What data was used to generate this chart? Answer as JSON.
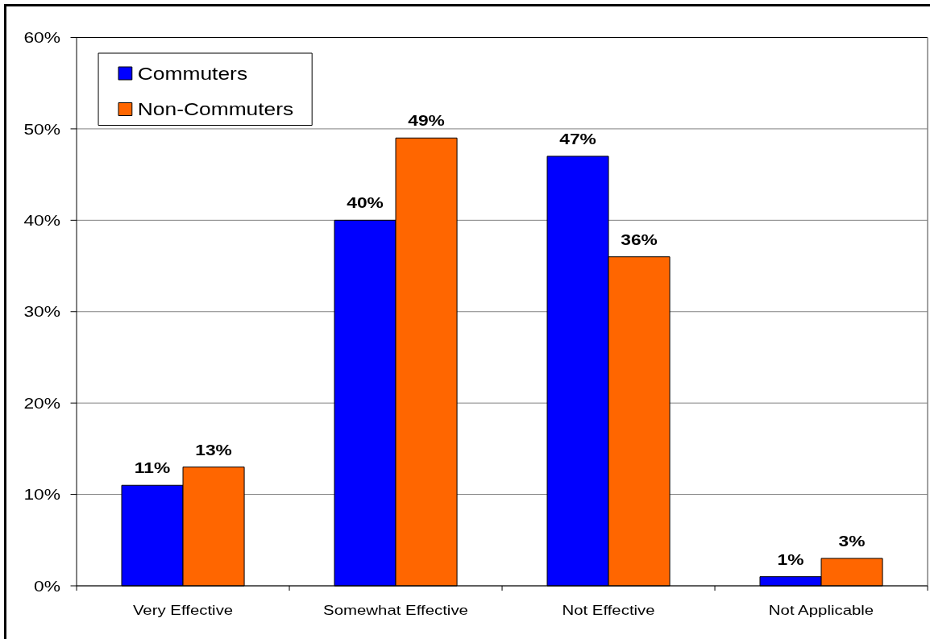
{
  "chart_data": {
    "type": "bar",
    "categories": [
      "Very Effective",
      "Somewhat Effective",
      "Not Effective",
      "Not Applicable"
    ],
    "series": [
      {
        "name": "Commuters",
        "color": "#0000ff",
        "values": [
          11,
          40,
          47,
          1
        ],
        "value_labels": [
          "11%",
          "40%",
          "47%",
          "1%"
        ]
      },
      {
        "name": "Non-Commuters",
        "color": "#ff6600",
        "values": [
          13,
          49,
          36,
          3
        ],
        "value_labels": [
          "13%",
          "49%",
          "36%",
          "3%"
        ]
      }
    ],
    "ylim": [
      0,
      60
    ],
    "yticks": [
      {
        "value": 0,
        "label": "0%"
      },
      {
        "value": 10,
        "label": "10%"
      },
      {
        "value": 20,
        "label": "20%"
      },
      {
        "value": 30,
        "label": "30%"
      },
      {
        "value": 40,
        "label": "40%"
      },
      {
        "value": 50,
        "label": "50%"
      },
      {
        "value": 60,
        "label": "60%"
      }
    ],
    "grid": "y",
    "legend": "top left"
  }
}
